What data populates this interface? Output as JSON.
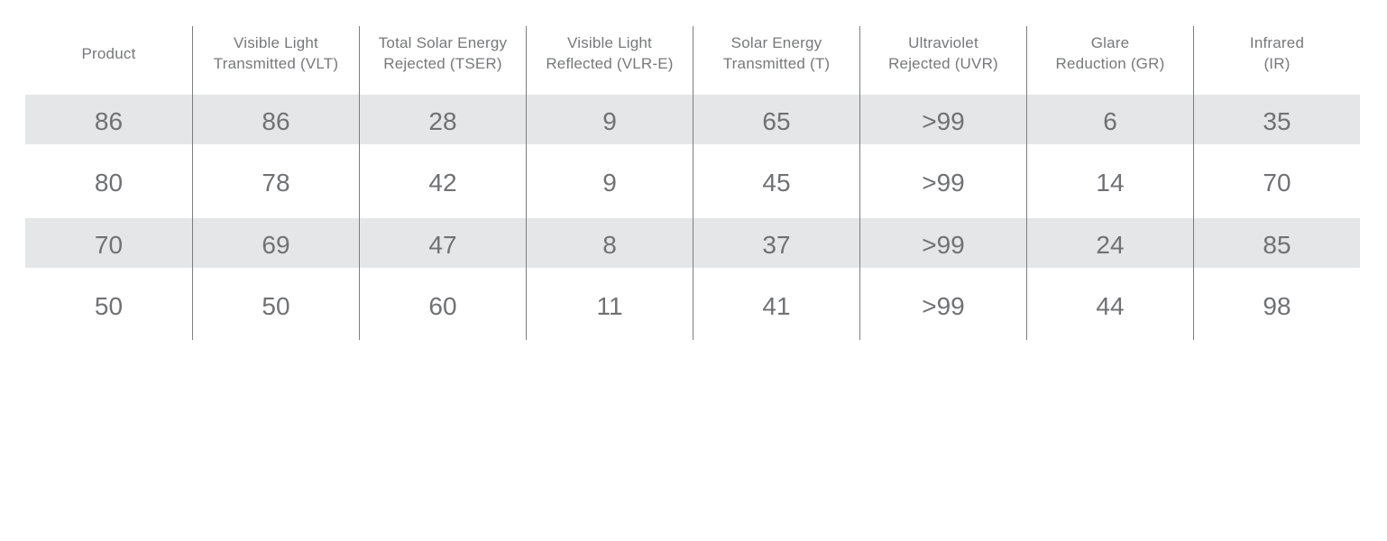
{
  "colors": {
    "page_bg": "#ffffff",
    "stripe": "#e5e6e7",
    "divider": "#7c7d7f",
    "header_text": "#77787a",
    "cell_text": "#707174"
  },
  "table": {
    "columns": [
      {
        "line1": "Product",
        "line2": ""
      },
      {
        "line1": "Visible Light",
        "line2": "Transmitted (VLT)"
      },
      {
        "line1": "Total Solar Energy",
        "line2": "Rejected (TSER)"
      },
      {
        "line1": "Visible Light",
        "line2": "Reflected (VLR-E)"
      },
      {
        "line1": "Solar Energy",
        "line2": "Transmitted (T)"
      },
      {
        "line1": "Ultraviolet",
        "line2": "Rejected (UVR)"
      },
      {
        "line1": "Glare",
        "line2": "Reduction (GR)"
      },
      {
        "line1": "Infrared",
        "line2": "(IR)"
      }
    ],
    "rows": [
      {
        "cells": [
          "86",
          "86",
          "28",
          "9",
          "65",
          ">99",
          "6",
          "35"
        ]
      },
      {
        "cells": [
          "80",
          "78",
          "42",
          "9",
          "45",
          ">99",
          "14",
          "70"
        ]
      },
      {
        "cells": [
          "70",
          "69",
          "47",
          "8",
          "37",
          ">99",
          "24",
          "85"
        ]
      },
      {
        "cells": [
          "50",
          "50",
          "60",
          "11",
          "41",
          ">99",
          "44",
          "98"
        ]
      }
    ]
  },
  "chart_data": {
    "type": "table",
    "columns": [
      "Product",
      "Visible Light Transmitted (VLT)",
      "Total Solar Energy Rejected (TSER)",
      "Visible Light Reflected (VLR-E)",
      "Solar Energy Transmitted (T)",
      "Ultraviolet Rejected (UVR)",
      "Glare Reduction (GR)",
      "Infrared (IR)"
    ],
    "rows": [
      [
        "86",
        "86",
        "28",
        "9",
        "65",
        ">99",
        "6",
        "35"
      ],
      [
        "80",
        "78",
        "42",
        "9",
        "45",
        ">99",
        "14",
        "70"
      ],
      [
        "70",
        "69",
        "47",
        "8",
        "37",
        ">99",
        "24",
        "85"
      ],
      [
        "50",
        "50",
        "60",
        "11",
        "41",
        ">99",
        "44",
        "98"
      ]
    ]
  }
}
